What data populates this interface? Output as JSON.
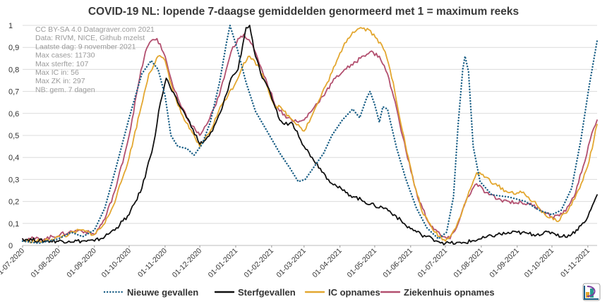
{
  "chart_data": {
    "type": "line",
    "title": "COVID-19 NL: lopende 7-daagse gemiddelden genormeerd met 1 = maximum reeks",
    "xlabel": "",
    "ylabel": "",
    "ylim": [
      0,
      1
    ],
    "x_range": [
      "2020-07-01",
      "2021-11-09"
    ],
    "y_ticks": [
      "0",
      "0,1",
      "0,2",
      "0,3",
      "0,4",
      "0,5",
      "0,6",
      "0,7",
      "0,8",
      "0,9",
      "1"
    ],
    "x_ticks": [
      {
        "date": "2020-07-01",
        "label": "01-07-2020"
      },
      {
        "date": "2020-08-01",
        "label": "01-08-2020"
      },
      {
        "date": "2020-09-01",
        "label": "01-09-2020"
      },
      {
        "date": "2020-10-01",
        "label": "01-10-2020"
      },
      {
        "date": "2020-11-01",
        "label": "01-11-2020"
      },
      {
        "date": "2020-12-01",
        "label": "01-12-2020"
      },
      {
        "date": "2021-01-01",
        "label": "01-01-2021"
      },
      {
        "date": "2021-02-01",
        "label": "01-02-2021"
      },
      {
        "date": "2021-03-01",
        "label": "01-03-2021"
      },
      {
        "date": "2021-04-01",
        "label": "01-04-2021"
      },
      {
        "date": "2021-05-01",
        "label": "01-05-2021"
      },
      {
        "date": "2021-06-01",
        "label": "01-06-2021"
      },
      {
        "date": "2021-07-01",
        "label": "01-07-2021"
      },
      {
        "date": "2021-08-01",
        "label": "01-08-2021"
      },
      {
        "date": "2021-09-01",
        "label": "01-09-2021"
      },
      {
        "date": "2021-10-01",
        "label": "01-10-2021"
      },
      {
        "date": "2021-11-01",
        "label": "01-11-2021"
      }
    ],
    "notes": [
      "CC BY-SA 4.0 Datagraver.com 2021",
      "Data: RIVM, NICE, Github mzelst",
      "Laatste dag:  9 november 2021",
      "Max cases: 11730",
      "Max sterfte: 107",
      "Max IC in: 56",
      "Max ZK in: 297",
      "NB: gem. 7 dagen"
    ],
    "legend_position": "bottom",
    "grid": "horizontal",
    "series": [
      {
        "name": "Nieuwe gevallen",
        "color": "#1a5f86",
        "style": "dotted",
        "points": [
          [
            "2020-07-01",
            0.02
          ],
          [
            "2020-07-15",
            0.01
          ],
          [
            "2020-08-01",
            0.03
          ],
          [
            "2020-08-12",
            0.06
          ],
          [
            "2020-08-22",
            0.04
          ],
          [
            "2020-09-01",
            0.07
          ],
          [
            "2020-09-10",
            0.17
          ],
          [
            "2020-09-20",
            0.36
          ],
          [
            "2020-10-01",
            0.58
          ],
          [
            "2020-10-12",
            0.78
          ],
          [
            "2020-10-20",
            0.84
          ],
          [
            "2020-10-26",
            0.8
          ],
          [
            "2020-11-01",
            0.68
          ],
          [
            "2020-11-06",
            0.5
          ],
          [
            "2020-11-12",
            0.45
          ],
          [
            "2020-11-20",
            0.44
          ],
          [
            "2020-11-26",
            0.41
          ],
          [
            "2020-12-03",
            0.46
          ],
          [
            "2020-12-10",
            0.56
          ],
          [
            "2020-12-18",
            0.74
          ],
          [
            "2020-12-24",
            0.92
          ],
          [
            "2020-12-27",
            1.0
          ],
          [
            "2021-01-02",
            0.9
          ],
          [
            "2021-01-10",
            0.74
          ],
          [
            "2021-01-18",
            0.61
          ],
          [
            "2021-01-28",
            0.52
          ],
          [
            "2021-02-08",
            0.42
          ],
          [
            "2021-02-17",
            0.35
          ],
          [
            "2021-02-24",
            0.29
          ],
          [
            "2021-03-02",
            0.3
          ],
          [
            "2021-03-10",
            0.36
          ],
          [
            "2021-03-18",
            0.42
          ],
          [
            "2021-03-25",
            0.5
          ],
          [
            "2021-04-03",
            0.57
          ],
          [
            "2021-04-12",
            0.62
          ],
          [
            "2021-04-18",
            0.58
          ],
          [
            "2021-04-24",
            0.67
          ],
          [
            "2021-04-27",
            0.7
          ],
          [
            "2021-05-01",
            0.64
          ],
          [
            "2021-05-05",
            0.56
          ],
          [
            "2021-05-08",
            0.63
          ],
          [
            "2021-05-12",
            0.62
          ],
          [
            "2021-05-20",
            0.44
          ],
          [
            "2021-05-28",
            0.3
          ],
          [
            "2021-06-06",
            0.17
          ],
          [
            "2021-06-15",
            0.08
          ],
          [
            "2021-06-25",
            0.03
          ],
          [
            "2021-07-02",
            0.06
          ],
          [
            "2021-07-08",
            0.22
          ],
          [
            "2021-07-12",
            0.55
          ],
          [
            "2021-07-16",
            0.8
          ],
          [
            "2021-07-18",
            0.86
          ],
          [
            "2021-07-21",
            0.79
          ],
          [
            "2021-07-25",
            0.45
          ],
          [
            "2021-07-31",
            0.29
          ],
          [
            "2021-08-10",
            0.23
          ],
          [
            "2021-08-25",
            0.22
          ],
          [
            "2021-09-08",
            0.2
          ],
          [
            "2021-09-20",
            0.16
          ],
          [
            "2021-10-01",
            0.14
          ],
          [
            "2021-10-09",
            0.16
          ],
          [
            "2021-10-18",
            0.26
          ],
          [
            "2021-10-26",
            0.48
          ],
          [
            "2021-11-02",
            0.72
          ],
          [
            "2021-11-09",
            0.93
          ]
        ]
      },
      {
        "name": "Sterfgevallen",
        "color": "#111111",
        "style": "solid",
        "points": [
          [
            "2020-07-01",
            0.03
          ],
          [
            "2020-07-20",
            0.02
          ],
          [
            "2020-08-10",
            0.02
          ],
          [
            "2020-09-01",
            0.02
          ],
          [
            "2020-09-10",
            0.04
          ],
          [
            "2020-09-20",
            0.08
          ],
          [
            "2020-10-01",
            0.14
          ],
          [
            "2020-10-12",
            0.26
          ],
          [
            "2020-10-22",
            0.46
          ],
          [
            "2020-10-28",
            0.65
          ],
          [
            "2020-11-02",
            0.76
          ],
          [
            "2020-11-07",
            0.7
          ],
          [
            "2020-11-12",
            0.65
          ],
          [
            "2020-11-18",
            0.6
          ],
          [
            "2020-11-25",
            0.53
          ],
          [
            "2020-12-01",
            0.46
          ],
          [
            "2020-12-06",
            0.48
          ],
          [
            "2020-12-12",
            0.52
          ],
          [
            "2020-12-20",
            0.62
          ],
          [
            "2020-12-28",
            0.76
          ],
          [
            "2021-01-03",
            0.8
          ],
          [
            "2021-01-07",
            0.91
          ],
          [
            "2021-01-10",
            0.99
          ],
          [
            "2021-01-13",
            1.0
          ],
          [
            "2021-01-18",
            0.86
          ],
          [
            "2021-01-24",
            0.76
          ],
          [
            "2021-01-31",
            0.69
          ],
          [
            "2021-02-08",
            0.57
          ],
          [
            "2021-02-12",
            0.55
          ],
          [
            "2021-02-18",
            0.56
          ],
          [
            "2021-02-23",
            0.52
          ],
          [
            "2021-03-01",
            0.45
          ],
          [
            "2021-03-08",
            0.4
          ],
          [
            "2021-03-15",
            0.35
          ],
          [
            "2021-03-22",
            0.3
          ],
          [
            "2021-03-29",
            0.27
          ],
          [
            "2021-04-06",
            0.24
          ],
          [
            "2021-04-14",
            0.22
          ],
          [
            "2021-04-22",
            0.2
          ],
          [
            "2021-05-01",
            0.18
          ],
          [
            "2021-05-10",
            0.17
          ],
          [
            "2021-05-18",
            0.14
          ],
          [
            "2021-05-28",
            0.09
          ],
          [
            "2021-06-10",
            0.05
          ],
          [
            "2021-06-20",
            0.03
          ],
          [
            "2021-07-01",
            0.01
          ],
          [
            "2021-07-15",
            0.01
          ],
          [
            "2021-08-01",
            0.03
          ],
          [
            "2021-08-15",
            0.05
          ],
          [
            "2021-09-01",
            0.06
          ],
          [
            "2021-09-15",
            0.05
          ],
          [
            "2021-10-01",
            0.06
          ],
          [
            "2021-10-10",
            0.04
          ],
          [
            "2021-10-18",
            0.05
          ],
          [
            "2021-10-26",
            0.09
          ],
          [
            "2021-11-01",
            0.13
          ],
          [
            "2021-11-09",
            0.23
          ]
        ]
      },
      {
        "name": "IC opnames",
        "color": "#e3a730",
        "style": "solid",
        "points": [
          [
            "2020-07-01",
            0.02
          ],
          [
            "2020-07-20",
            0.02
          ],
          [
            "2020-08-10",
            0.05
          ],
          [
            "2020-08-20",
            0.07
          ],
          [
            "2020-09-01",
            0.05
          ],
          [
            "2020-09-10",
            0.1
          ],
          [
            "2020-09-20",
            0.22
          ],
          [
            "2020-10-01",
            0.4
          ],
          [
            "2020-10-10",
            0.6
          ],
          [
            "2020-10-18",
            0.78
          ],
          [
            "2020-10-26",
            0.86
          ],
          [
            "2020-11-01",
            0.84
          ],
          [
            "2020-11-08",
            0.7
          ],
          [
            "2020-11-15",
            0.6
          ],
          [
            "2020-11-22",
            0.53
          ],
          [
            "2020-12-01",
            0.45
          ],
          [
            "2020-12-10",
            0.52
          ],
          [
            "2020-12-20",
            0.64
          ],
          [
            "2021-01-01",
            0.74
          ],
          [
            "2021-01-08",
            0.83
          ],
          [
            "2021-01-13",
            0.86
          ],
          [
            "2021-01-20",
            0.82
          ],
          [
            "2021-01-27",
            0.74
          ],
          [
            "2021-02-03",
            0.64
          ],
          [
            "2021-02-10",
            0.62
          ],
          [
            "2021-02-17",
            0.58
          ],
          [
            "2021-02-24",
            0.55
          ],
          [
            "2021-03-01",
            0.52
          ],
          [
            "2021-03-07",
            0.58
          ],
          [
            "2021-03-14",
            0.66
          ],
          [
            "2021-03-21",
            0.74
          ],
          [
            "2021-03-28",
            0.82
          ],
          [
            "2021-04-05",
            0.92
          ],
          [
            "2021-04-12",
            0.97
          ],
          [
            "2021-04-19",
            0.99
          ],
          [
            "2021-04-26",
            0.98
          ],
          [
            "2021-05-03",
            0.94
          ],
          [
            "2021-05-10",
            0.88
          ],
          [
            "2021-05-17",
            0.74
          ],
          [
            "2021-05-25",
            0.52
          ],
          [
            "2021-06-03",
            0.3
          ],
          [
            "2021-06-12",
            0.14
          ],
          [
            "2021-06-22",
            0.06
          ],
          [
            "2021-07-01",
            0.02
          ],
          [
            "2021-07-10",
            0.08
          ],
          [
            "2021-07-20",
            0.22
          ],
          [
            "2021-07-28",
            0.33
          ],
          [
            "2021-08-05",
            0.31
          ],
          [
            "2021-08-15",
            0.27
          ],
          [
            "2021-08-25",
            0.24
          ],
          [
            "2021-09-05",
            0.24
          ],
          [
            "2021-09-15",
            0.2
          ],
          [
            "2021-09-25",
            0.14
          ],
          [
            "2021-10-05",
            0.11
          ],
          [
            "2021-10-15",
            0.16
          ],
          [
            "2021-10-25",
            0.26
          ],
          [
            "2021-11-02",
            0.38
          ],
          [
            "2021-11-09",
            0.55
          ]
        ]
      },
      {
        "name": "Ziekenhuis opnames",
        "color": "#b24f6f",
        "style": "solid",
        "points": [
          [
            "2020-07-01",
            0.03
          ],
          [
            "2020-07-20",
            0.03
          ],
          [
            "2020-08-10",
            0.06
          ],
          [
            "2020-08-20",
            0.07
          ],
          [
            "2020-09-01",
            0.05
          ],
          [
            "2020-09-10",
            0.12
          ],
          [
            "2020-09-20",
            0.27
          ],
          [
            "2020-10-01",
            0.5
          ],
          [
            "2020-10-10",
            0.76
          ],
          [
            "2020-10-15",
            0.88
          ],
          [
            "2020-10-20",
            0.93
          ],
          [
            "2020-10-25",
            0.94
          ],
          [
            "2020-11-01",
            0.86
          ],
          [
            "2020-11-08",
            0.72
          ],
          [
            "2020-11-15",
            0.63
          ],
          [
            "2020-11-22",
            0.56
          ],
          [
            "2020-12-01",
            0.5
          ],
          [
            "2020-12-08",
            0.56
          ],
          [
            "2020-12-15",
            0.64
          ],
          [
            "2020-12-22",
            0.76
          ],
          [
            "2020-12-28",
            0.88
          ],
          [
            "2021-01-03",
            0.94
          ],
          [
            "2021-01-08",
            0.96
          ],
          [
            "2021-01-14",
            0.92
          ],
          [
            "2021-01-20",
            0.85
          ],
          [
            "2021-01-28",
            0.74
          ],
          [
            "2021-02-05",
            0.63
          ],
          [
            "2021-02-15",
            0.58
          ],
          [
            "2021-02-24",
            0.56
          ],
          [
            "2021-03-01",
            0.57
          ],
          [
            "2021-03-10",
            0.63
          ],
          [
            "2021-03-20",
            0.7
          ],
          [
            "2021-03-28",
            0.76
          ],
          [
            "2021-04-05",
            0.8
          ],
          [
            "2021-04-12",
            0.82
          ],
          [
            "2021-04-20",
            0.86
          ],
          [
            "2021-04-27",
            0.88
          ],
          [
            "2021-05-05",
            0.86
          ],
          [
            "2021-05-12",
            0.78
          ],
          [
            "2021-05-20",
            0.62
          ],
          [
            "2021-05-28",
            0.43
          ],
          [
            "2021-06-07",
            0.22
          ],
          [
            "2021-06-17",
            0.1
          ],
          [
            "2021-06-28",
            0.04
          ],
          [
            "2021-07-05",
            0.03
          ],
          [
            "2021-07-12",
            0.1
          ],
          [
            "2021-07-20",
            0.22
          ],
          [
            "2021-07-28",
            0.28
          ],
          [
            "2021-08-05",
            0.24
          ],
          [
            "2021-08-15",
            0.21
          ],
          [
            "2021-08-25",
            0.2
          ],
          [
            "2021-09-10",
            0.19
          ],
          [
            "2021-09-20",
            0.17
          ],
          [
            "2021-10-01",
            0.13
          ],
          [
            "2021-10-10",
            0.14
          ],
          [
            "2021-10-20",
            0.22
          ],
          [
            "2021-10-28",
            0.36
          ],
          [
            "2021-11-03",
            0.48
          ],
          [
            "2021-11-09",
            0.57
          ]
        ]
      }
    ]
  }
}
